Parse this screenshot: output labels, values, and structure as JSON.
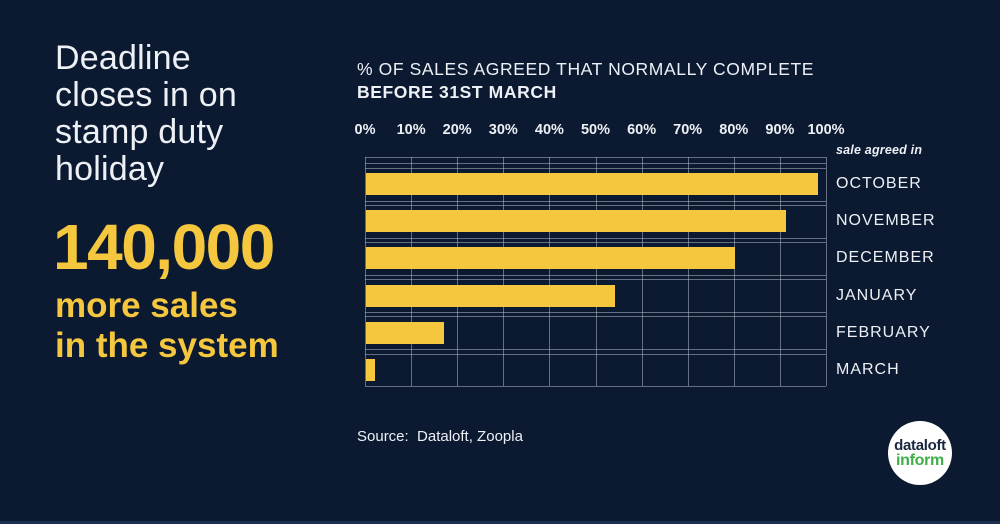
{
  "colors": {
    "background": "#0B1A31",
    "accent_yellow": "#F5C73E",
    "logo_green": "#3FAE49",
    "text_white": "#EDF0F5",
    "gridline": "rgba(190,198,212,0.5)"
  },
  "headline": {
    "text": "Deadline\ncloses in on\nstamp duty\nholiday"
  },
  "stat": {
    "number": "140,000",
    "caption": "more sales\nin the system"
  },
  "chart": {
    "title_line1": "% OF SALES AGREED THAT NORMALLY COMPLETE",
    "title_line2": "BEFORE 31ST MARCH",
    "series_note": "sale agreed in"
  },
  "source": {
    "label": "Source:  Dataloft, Zoopla"
  },
  "logo": {
    "line1": "dataloft",
    "line2": "inform"
  },
  "chart_data": {
    "type": "bar",
    "orientation": "horizontal",
    "title": "% OF SALES AGREED THAT NORMALLY COMPLETE BEFORE 31ST MARCH",
    "categories": [
      "OCTOBER",
      "NOVEMBER",
      "DECEMBER",
      "JANUARY",
      "FEBRUARY",
      "MARCH"
    ],
    "values": [
      98,
      91,
      80,
      54,
      17,
      2
    ],
    "annotation": "sale agreed in",
    "x_ticks": [
      "0%",
      "10%",
      "20%",
      "30%",
      "40%",
      "50%",
      "60%",
      "70%",
      "80%",
      "90%",
      "100%"
    ],
    "xlim": [
      0,
      100
    ],
    "grid": true,
    "bar_color": "#F5C73E",
    "legend": "none"
  }
}
